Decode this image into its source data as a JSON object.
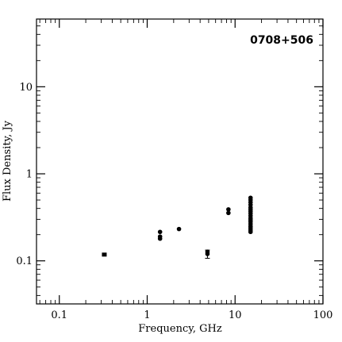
{
  "chart_data": {
    "type": "scatter",
    "title": "0708+506",
    "xlabel": "Frequency, GHz",
    "ylabel": "Flux Density, Jy",
    "xscale": "log",
    "yscale": "log",
    "xlim": [
      0.055,
      100
    ],
    "ylim": [
      0.032,
      60
    ],
    "x_ticks": [
      {
        "value": 0.1,
        "label": "0.1"
      },
      {
        "value": 1,
        "label": "1"
      },
      {
        "value": 10,
        "label": "10"
      },
      {
        "value": 100,
        "label": "100"
      }
    ],
    "y_ticks": [
      {
        "value": 0.1,
        "label": "0.1"
      },
      {
        "value": 1,
        "label": "1"
      },
      {
        "value": 10,
        "label": "10"
      }
    ],
    "grid": false,
    "series": [
      {
        "points": [
          {
            "x": 0.325,
            "y": 0.118,
            "marker": "square"
          },
          {
            "x": 1.4,
            "y": 0.215
          },
          {
            "x": 1.4,
            "y": 0.19
          },
          {
            "x": 1.4,
            "y": 0.18
          },
          {
            "x": 2.3,
            "y": 0.232
          },
          {
            "x": 4.85,
            "y": 0.12,
            "yerr": 0.013
          },
          {
            "x": 4.85,
            "y": 0.127
          },
          {
            "x": 8.4,
            "y": 0.39
          },
          {
            "x": 8.4,
            "y": 0.355
          },
          {
            "x": 15.0,
            "y": 0.53
          },
          {
            "x": 15.0,
            "y": 0.5
          },
          {
            "x": 15.0,
            "y": 0.47
          },
          {
            "x": 15.0,
            "y": 0.44
          },
          {
            "x": 15.0,
            "y": 0.41
          },
          {
            "x": 15.0,
            "y": 0.39
          },
          {
            "x": 15.0,
            "y": 0.37
          },
          {
            "x": 15.0,
            "y": 0.35
          },
          {
            "x": 15.0,
            "y": 0.33
          },
          {
            "x": 15.0,
            "y": 0.31
          },
          {
            "x": 15.0,
            "y": 0.295
          },
          {
            "x": 15.0,
            "y": 0.28
          },
          {
            "x": 15.0,
            "y": 0.265
          },
          {
            "x": 15.0,
            "y": 0.25
          },
          {
            "x": 15.0,
            "y": 0.238
          },
          {
            "x": 15.0,
            "y": 0.226
          },
          {
            "x": 15.0,
            "y": 0.215
          }
        ]
      }
    ]
  }
}
